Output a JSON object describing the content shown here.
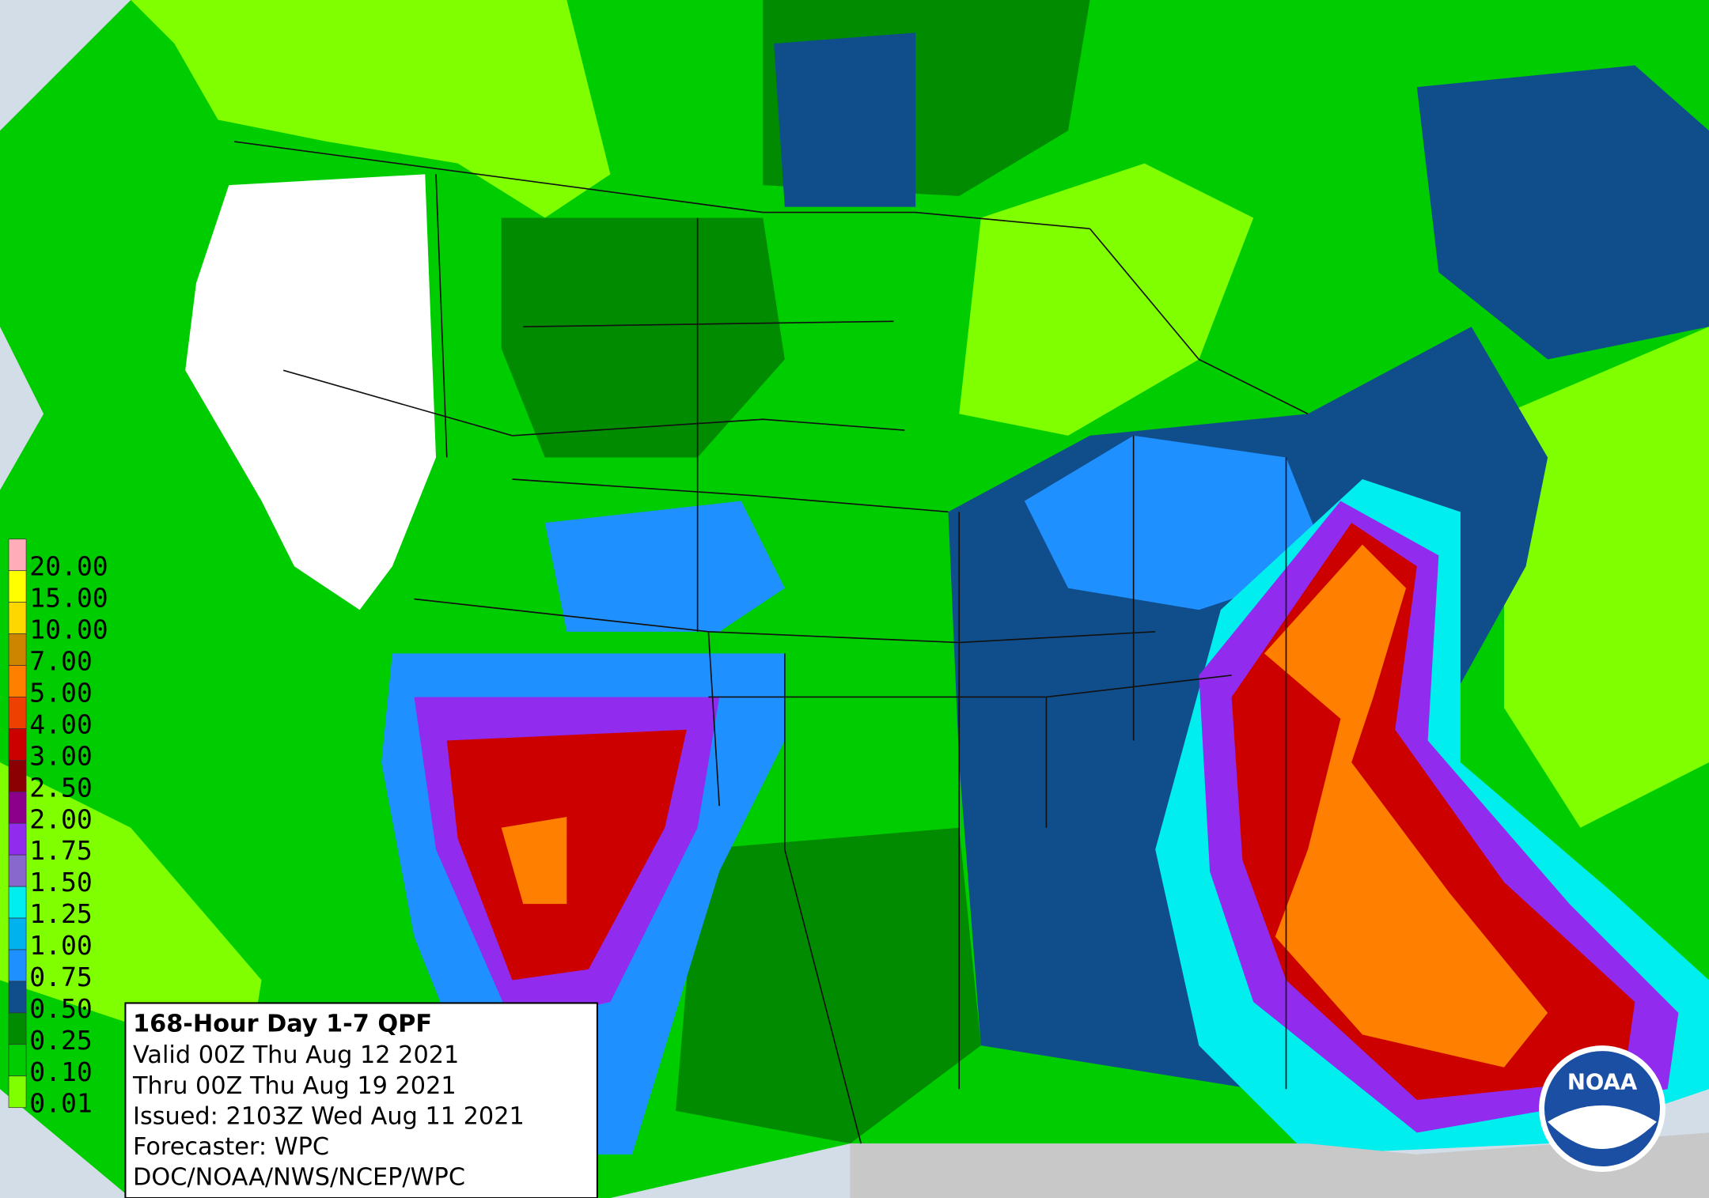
{
  "map": {
    "title": "168-Hour Day 1-7 QPF",
    "valid": "Valid 00Z Thu Aug 12 2021",
    "thru": "Thru 00Z Thu Aug 19 2021",
    "issued": "Issued: 2103Z Wed Aug 11 2021",
    "forecaster": "Forecaster: WPC",
    "agency": "DOC/NOAA/NWS/NCEP/WPC",
    "logo": "NOAA",
    "legend": [
      {
        "label": "20.00",
        "color": "#ffaeb9"
      },
      {
        "label": "15.00",
        "color": "#ffff00"
      },
      {
        "label": "10.00",
        "color": "#ffd700"
      },
      {
        "label": "7.00",
        "color": "#cd8500"
      },
      {
        "label": "5.00",
        "color": "#ff7f00"
      },
      {
        "label": "4.00",
        "color": "#ee4000"
      },
      {
        "label": "3.00",
        "color": "#cd0000"
      },
      {
        "label": "2.50",
        "color": "#8b0000"
      },
      {
        "label": "2.00",
        "color": "#8b008b"
      },
      {
        "label": "1.75",
        "color": "#912cee"
      },
      {
        "label": "1.50",
        "color": "#8968cd"
      },
      {
        "label": "1.25",
        "color": "#00eeee"
      },
      {
        "label": "1.00",
        "color": "#00b2ee"
      },
      {
        "label": "0.75",
        "color": "#1e90ff"
      },
      {
        "label": "0.50",
        "color": "#104e8b"
      },
      {
        "label": "0.25",
        "color": "#008b00"
      },
      {
        "label": "0.10",
        "color": "#00cd00"
      },
      {
        "label": "0.01",
        "color": "#7fff00"
      }
    ]
  }
}
